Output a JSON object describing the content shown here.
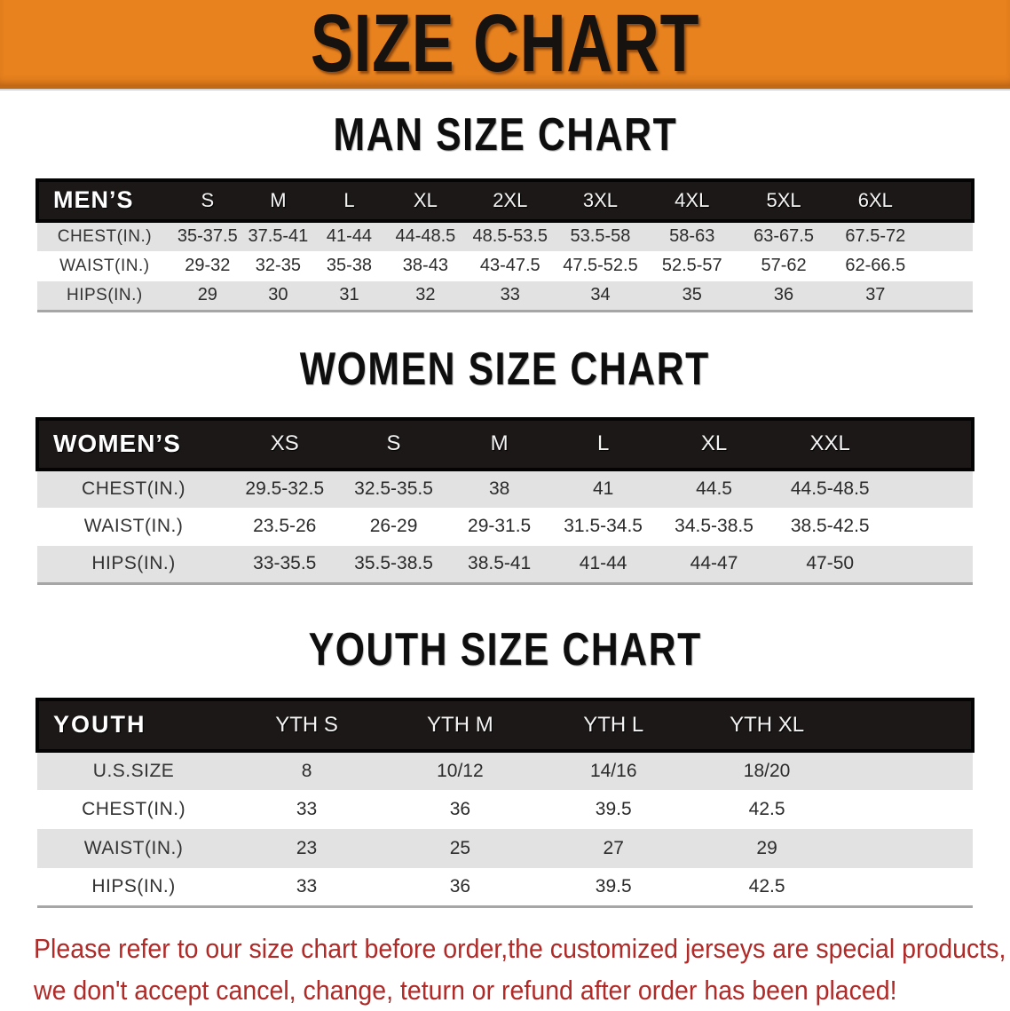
{
  "banner": {
    "title": "SIZE CHART",
    "bg_color": "#e8821e",
    "text_color": "#151210"
  },
  "sections": [
    {
      "heading": "MAN SIZE CHART",
      "table": {
        "label": "MEN’S",
        "columns": [
          "S",
          "M",
          "L",
          "XL",
          "2XL",
          "3XL",
          "4XL",
          "5XL",
          "6XL"
        ],
        "rows": [
          {
            "label": "CHEST(IN.)",
            "values": [
              "35-37.5",
              "37.5-41",
              "41-44",
              "44-48.5",
              "48.5-53.5",
              "53.5-58",
              "58-63",
              "63-67.5",
              "67.5-72"
            ]
          },
          {
            "label": "WAIST(IN.)",
            "values": [
              "29-32",
              "32-35",
              "35-38",
              "38-43",
              "43-47.5",
              "47.5-52.5",
              "52.5-57",
              "57-62",
              "62-66.5"
            ]
          },
          {
            "label": "HIPS(IN.)",
            "values": [
              "29",
              "30",
              "31",
              "32",
              "33",
              "34",
              "35",
              "36",
              "37"
            ]
          }
        ]
      }
    },
    {
      "heading": "WOMEN SIZE CHART",
      "table": {
        "label": "WOMEN’S",
        "columns": [
          "XS",
          "S",
          "M",
          "L",
          "XL",
          "XXL"
        ],
        "rows": [
          {
            "label": "CHEST(IN.)",
            "values": [
              "29.5-32.5",
              "32.5-35.5",
              "38",
              "41",
              "44.5",
              "44.5-48.5"
            ]
          },
          {
            "label": "WAIST(IN.)",
            "values": [
              "23.5-26",
              "26-29",
              "29-31.5",
              "31.5-34.5",
              "34.5-38.5",
              "38.5-42.5"
            ]
          },
          {
            "label": "HIPS(IN.)",
            "values": [
              "33-35.5",
              "35.5-38.5",
              "38.5-41",
              "41-44",
              "44-47",
              "47-50"
            ]
          }
        ]
      }
    },
    {
      "heading": "YOUTH SIZE CHART",
      "table": {
        "label": "YOUTH",
        "columns": [
          "YTH S",
          "YTH M",
          "YTH L",
          "YTH XL"
        ],
        "rows": [
          {
            "label": "U.S.SIZE",
            "values": [
              "8",
              "10/12",
              "14/16",
              "18/20"
            ]
          },
          {
            "label": "CHEST(IN.)",
            "values": [
              "33",
              "36",
              "39.5",
              "42.5"
            ]
          },
          {
            "label": "WAIST(IN.)",
            "values": [
              "23",
              "25",
              "27",
              "29"
            ]
          },
          {
            "label": "HIPS(IN.)",
            "values": [
              "33",
              "36",
              "39.5",
              "42.5"
            ]
          }
        ]
      }
    }
  ],
  "disclaimer": {
    "line1": "Please refer to our size chart before order,the customized jerseys are special products,",
    "line2": "we don't accept cancel, change, teturn or refund after order has been placed!",
    "text_color": "#b02a28"
  },
  "colors": {
    "banner_orange": "#e8821e",
    "table_header_black": "#1d1818",
    "stripe_gray": "#e2e2e2",
    "disclaimer_red": "#b02a28"
  }
}
